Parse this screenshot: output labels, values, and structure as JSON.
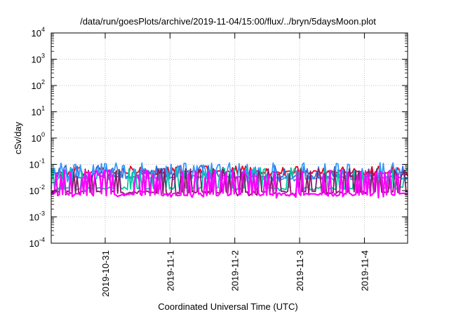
{
  "chart_data": {
    "type": "line",
    "title": "/data/run/goesPlots/archive/2019-11-04/15:00/flux/../bryn/5daysMoon.plot",
    "xlabel": "Coordinated Universal Time (UTC)",
    "ylabel": "cSv/day",
    "yscale": "log",
    "ylim": [
      0.0001,
      10000
    ],
    "xlim": [
      "2019-10-30T04:00",
      "2019-11-04T16:00"
    ],
    "grid": true,
    "legend": "none",
    "y_ticks": [
      {
        "base": "10",
        "exp": "4"
      },
      {
        "base": "10",
        "exp": "3"
      },
      {
        "base": "10",
        "exp": "2"
      },
      {
        "base": "10",
        "exp": "1"
      },
      {
        "base": "10",
        "exp": "0"
      },
      {
        "base": "10",
        "exp": "-1"
      },
      {
        "base": "10",
        "exp": "-2"
      },
      {
        "base": "10",
        "exp": "-3"
      },
      {
        "base": "10",
        "exp": "-4"
      }
    ],
    "x_ticks": [
      "2019-10-31",
      "2019-11-1",
      "2019-11-2",
      "2019-11-3",
      "2019-11-4"
    ],
    "series": [
      {
        "color": "#e8001c",
        "base": 0.045,
        "spike": 0.075,
        "baseline_level": 0.05
      },
      {
        "color": "#2f6fdb",
        "base": 0.03,
        "spike": 0.08,
        "baseline_level": 0.033
      },
      {
        "color": "#3399ff",
        "base": 0.028,
        "spike": 0.1,
        "baseline_level": 0.03
      },
      {
        "color": "#00c8a0",
        "base": 0.012,
        "spike": 0.065,
        "baseline_level": 0.012
      },
      {
        "color": "#8a1a6b",
        "base": 0.0085,
        "spike": 0.06,
        "baseline_level": 0.0085
      },
      {
        "color": "#ff00ff",
        "base": 0.007,
        "spike": 0.055,
        "baseline_level": 0.007
      }
    ]
  }
}
